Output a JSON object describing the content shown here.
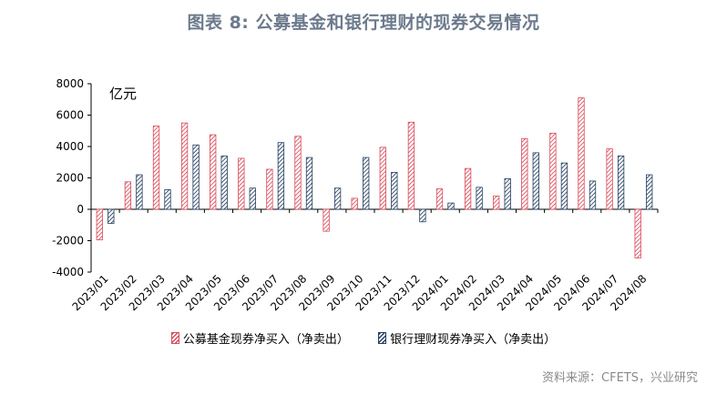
{
  "title": "图表 8:  公募基金和银行理财的现券交易情况",
  "source": "资料来源：CFETS，兴业研究",
  "colors": {
    "fund": "#d94a5a",
    "wealth": "#243f60",
    "title": "#6c7a8c"
  },
  "chart_data": {
    "type": "bar",
    "unit_label": "亿元",
    "ylim": [
      -4000,
      8000
    ],
    "yticks": [
      -4000,
      -2000,
      0,
      2000,
      4000,
      6000,
      8000
    ],
    "ytick_labels": [
      "-4000",
      "-2000",
      "0",
      "2000",
      "4000",
      "6000",
      "8000"
    ],
    "categories": [
      "2023/01",
      "2023/02",
      "2023/03",
      "2023/04",
      "2023/05",
      "2023/06",
      "2023/07",
      "2023/08",
      "2023/09",
      "2023/10",
      "2023/11",
      "2023/12",
      "2024/01",
      "2024/02",
      "2024/03",
      "2024/04",
      "2024/05",
      "2024/06",
      "2024/07",
      "2024/08"
    ],
    "series": [
      {
        "name": "公募基金现券净买入（净卖出）",
        "values": [
          -1950,
          1750,
          5300,
          5500,
          4750,
          3250,
          2550,
          4650,
          -1400,
          700,
          3950,
          5550,
          1300,
          2600,
          850,
          4500,
          4850,
          7100,
          3850,
          -3100
        ]
      },
      {
        "name": "银行理财现券净买入（净卖出）",
        "values": [
          -900,
          2200,
          1250,
          4100,
          3400,
          1350,
          4250,
          3300,
          1350,
          3300,
          2350,
          -800,
          400,
          1400,
          1950,
          3600,
          2950,
          1800,
          3400,
          2200
        ]
      }
    ],
    "grid": false,
    "legend_position": "bottom"
  }
}
